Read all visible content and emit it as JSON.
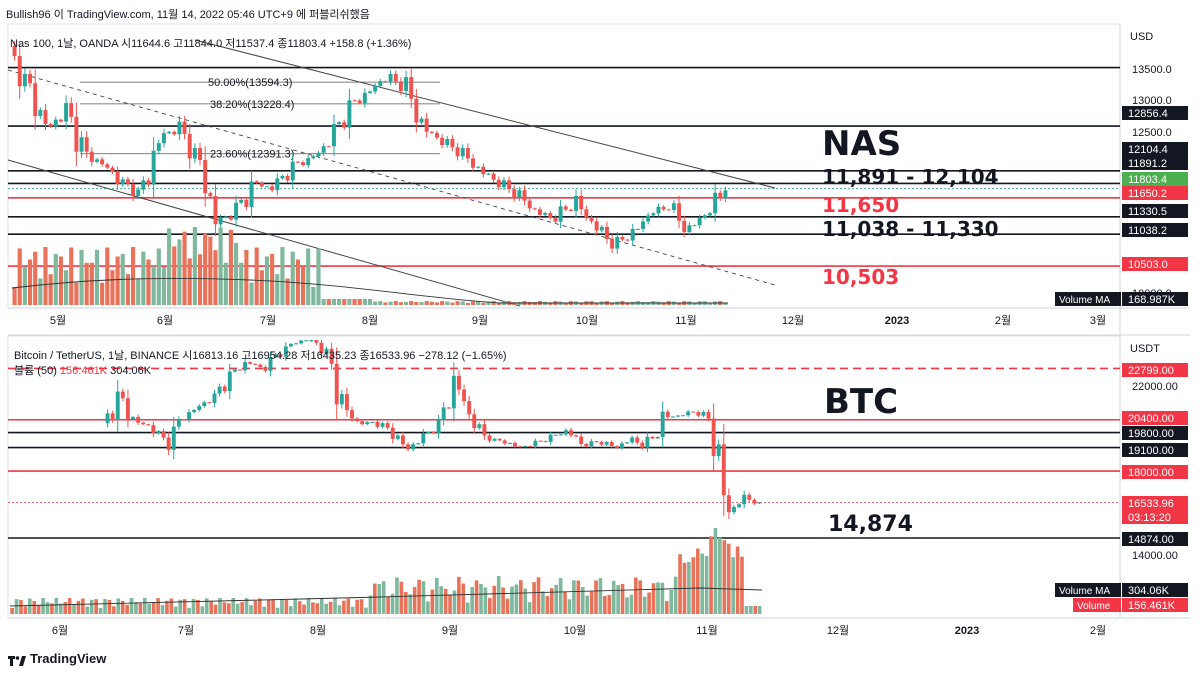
{
  "caption": "Bullish96 이 TradingView.com, 11월 14, 2022 05:46 UTC+9 에 퍼블리쉬했음",
  "footer_brand": "TradingView",
  "nas": {
    "legend": "Nas 100, 1날, OANDA  시11644.6  고11844.0  저11537.4  종11803.4  +158.8 (+1.36%)",
    "currency": "USD",
    "title_label": "NAS",
    "zone_upper": "11,891 - 12,104",
    "level_red": "11,650",
    "zone_lower": "11,038 - 11,330",
    "level_low": "10,503",
    "fib": [
      {
        "label": "50.00%(13594.3)",
        "price": 13594.3
      },
      {
        "label": "38.20%(13228.4)",
        "price": 13228.4
      },
      {
        "label": "23.60%(12391.3)",
        "price": 12391.3
      }
    ],
    "axis_ticks": [
      "13500.0",
      "13000.0",
      "12500.0",
      "10000.0"
    ],
    "price_tags": [
      {
        "text": "12856.4",
        "style": "dark"
      },
      {
        "text": "12104.4",
        "style": "dark"
      },
      {
        "text": "11891.2",
        "style": "dark"
      },
      {
        "text": "11803.4",
        "style": "green"
      },
      {
        "text": "11650.2",
        "style": "red"
      },
      {
        "text": "11330.5",
        "style": "dark"
      },
      {
        "text": "11038.2",
        "style": "dark"
      },
      {
        "text": "10503.0",
        "style": "red"
      }
    ],
    "volume_ma_label": "Volume MA",
    "volume_ma_value": "168.987K",
    "months": [
      "5월",
      "6월",
      "7월",
      "8월",
      "9월",
      "10월",
      "11월",
      "12월",
      "2023",
      "2월",
      "3월"
    ]
  },
  "btc": {
    "legend": "Bitcoin / TetherUS, 1날, BINANCE  시16813.16  고16954.28  저16435.23  종16533.96  −278.12 (−1.65%)",
    "legend2_prefix": "볼륨 (50)",
    "legend2_red": "156.461K",
    "legend2_value": "304.06K",
    "currency": "USDT",
    "title_label": "BTC",
    "level_low": "14,874",
    "axis_ticks": [
      "22000.00",
      "14000.00"
    ],
    "price_tags": [
      {
        "text": "22799.00",
        "style": "red"
      },
      {
        "text": "20400.00",
        "style": "red"
      },
      {
        "text": "19800.00",
        "style": "dark"
      },
      {
        "text": "19100.00",
        "style": "dark"
      },
      {
        "text": "18000.00",
        "style": "red"
      },
      {
        "text": "16533.96",
        "style": "red"
      },
      {
        "text": "03:13:20",
        "style": "red"
      },
      {
        "text": "14874.00",
        "style": "dark"
      }
    ],
    "volume_ma_label": "Volume MA",
    "volume_ma_value": "304.06K",
    "volume_label": "Volume",
    "volume_value": "156.461K",
    "months": [
      "6월",
      "7월",
      "8월",
      "9월",
      "10월",
      "11월",
      "12월",
      "2023",
      "2월"
    ]
  },
  "colors": {
    "up": "#26a69a",
    "down": "#ef5350",
    "red_line": "#f23645",
    "dark_line": "#131722",
    "vol_up": "#7fb89d",
    "vol_down": "#e8735a"
  }
}
